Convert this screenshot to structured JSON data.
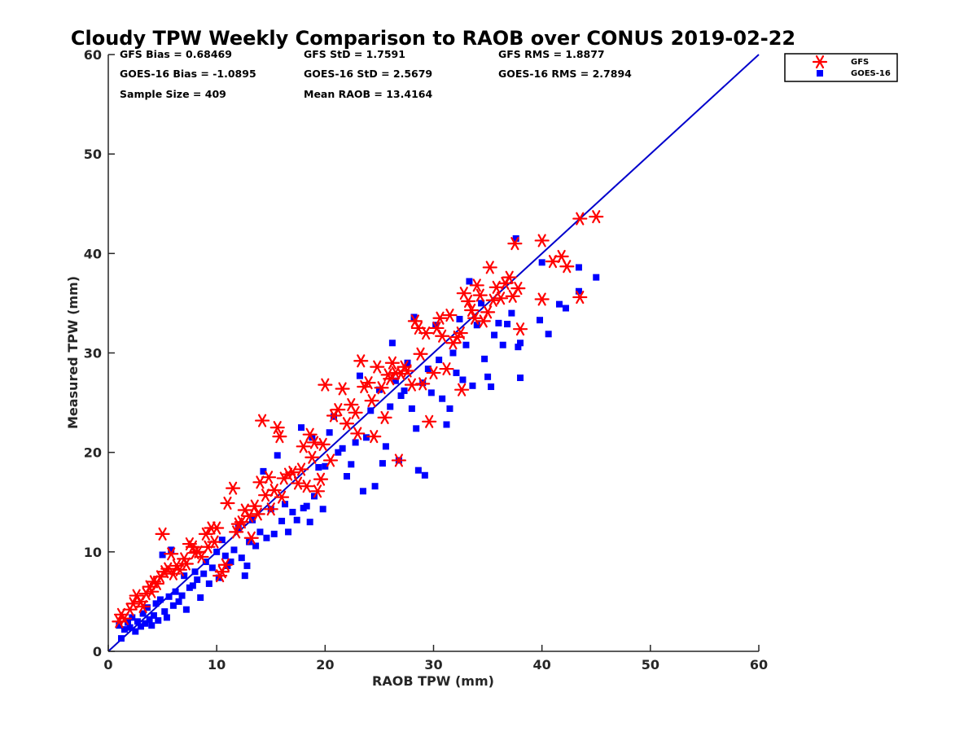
{
  "colors": {
    "gfs": "#ff0000",
    "goes": "#0000ff",
    "one_to_one_line": "#0000cc",
    "axis": "#262626"
  },
  "chart_data": {
    "type": "scatter",
    "title": "Cloudy TPW Weekly Comparison to RAOB over CONUS 2019-02-22",
    "xlabel": "RAOB TPW (mm)",
    "ylabel": "Measured TPW (mm)",
    "xlim": [
      0,
      60
    ],
    "ylim": [
      0,
      60
    ],
    "xticks": [
      "0",
      "10",
      "20",
      "30",
      "40",
      "50",
      "60"
    ],
    "yticks": [
      "0",
      "10",
      "20",
      "30",
      "40",
      "50",
      "60"
    ],
    "grid": false,
    "legend_position": "top-right, outside plot",
    "reference_line": {
      "type": "1:1",
      "from": [
        0,
        0
      ],
      "to": [
        60,
        60
      ]
    },
    "stats": {
      "gfs_bias": "GFS Bias = 0.68469",
      "goes_bias": "GOES-16 Bias = -1.0895",
      "sample_size": "Sample Size = 409",
      "gfs_std": "GFS StD = 1.7591",
      "goes_std": "GOES-16 StD = 2.5679",
      "mean_raob": "Mean RAOB = 13.4164",
      "gfs_rms": "GFS RMS = 1.8877",
      "goes_rms": "GOES-16 RMS = 2.7894"
    },
    "series": [
      {
        "name": "GFS",
        "marker": "asterisk",
        "points": [
          [
            1.0,
            3.0
          ],
          [
            1.2,
            3.7
          ],
          [
            1.5,
            3.3
          ],
          [
            2.0,
            4.2
          ],
          [
            2.3,
            4.8
          ],
          [
            2.6,
            5.6
          ],
          [
            3.0,
            5.0
          ],
          [
            3.2,
            4.5
          ],
          [
            3.5,
            5.8
          ],
          [
            3.8,
            6.5
          ],
          [
            4.0,
            6.0
          ],
          [
            4.2,
            7.0
          ],
          [
            4.5,
            6.8
          ],
          [
            4.8,
            7.5
          ],
          [
            5.0,
            11.8
          ],
          [
            5.2,
            8.0
          ],
          [
            5.5,
            8.3
          ],
          [
            5.8,
            9.8
          ],
          [
            6.0,
            7.8
          ],
          [
            6.3,
            8.6
          ],
          [
            6.6,
            8.2
          ],
          [
            7.0,
            9.3
          ],
          [
            7.2,
            8.8
          ],
          [
            7.5,
            10.8
          ],
          [
            7.8,
            10.5
          ],
          [
            8.0,
            9.9
          ],
          [
            8.3,
            10.0
          ],
          [
            8.6,
            9.5
          ],
          [
            9.0,
            11.8
          ],
          [
            9.2,
            10.5
          ],
          [
            9.5,
            12.4
          ],
          [
            9.8,
            11.0
          ],
          [
            10.0,
            12.4
          ],
          [
            10.3,
            7.6
          ],
          [
            10.5,
            8.0
          ],
          [
            10.8,
            8.7
          ],
          [
            11.0,
            14.9
          ],
          [
            11.5,
            16.4
          ],
          [
            11.8,
            12.0
          ],
          [
            12.0,
            12.8
          ],
          [
            12.3,
            13.0
          ],
          [
            12.6,
            14.2
          ],
          [
            13.0,
            13.6
          ],
          [
            13.2,
            11.4
          ],
          [
            13.5,
            14.6
          ],
          [
            13.8,
            13.8
          ],
          [
            14.0,
            17.0
          ],
          [
            14.2,
            23.2
          ],
          [
            14.5,
            15.7
          ],
          [
            14.8,
            17.5
          ],
          [
            15.0,
            14.3
          ],
          [
            15.3,
            16.2
          ],
          [
            15.6,
            22.5
          ],
          [
            15.8,
            21.6
          ],
          [
            16.0,
            15.5
          ],
          [
            16.2,
            17.4
          ],
          [
            16.6,
            17.8
          ],
          [
            17.0,
            18.0
          ],
          [
            17.5,
            16.9
          ],
          [
            17.8,
            18.3
          ],
          [
            18.0,
            20.6
          ],
          [
            18.3,
            16.6
          ],
          [
            18.6,
            21.8
          ],
          [
            18.8,
            19.5
          ],
          [
            19.0,
            21.0
          ],
          [
            19.3,
            16.1
          ],
          [
            19.6,
            17.3
          ],
          [
            19.8,
            20.8
          ],
          [
            20.0,
            26.8
          ],
          [
            20.5,
            19.2
          ],
          [
            20.8,
            23.7
          ],
          [
            21.2,
            24.3
          ],
          [
            21.6,
            26.4
          ],
          [
            22.0,
            22.9
          ],
          [
            22.4,
            24.8
          ],
          [
            22.8,
            24.0
          ],
          [
            23.0,
            21.9
          ],
          [
            23.3,
            29.2
          ],
          [
            23.6,
            26.6
          ],
          [
            24.0,
            27.0
          ],
          [
            24.3,
            25.2
          ],
          [
            24.5,
            21.6
          ],
          [
            24.8,
            28.6
          ],
          [
            25.2,
            26.5
          ],
          [
            25.5,
            23.5
          ],
          [
            25.8,
            27.8
          ],
          [
            26.0,
            27.4
          ],
          [
            26.2,
            29.0
          ],
          [
            26.5,
            28.0
          ],
          [
            26.8,
            19.2
          ],
          [
            27.0,
            27.9
          ],
          [
            27.3,
            28.6
          ],
          [
            27.6,
            28.2
          ],
          [
            28.0,
            26.8
          ],
          [
            28.3,
            33.2
          ],
          [
            28.6,
            32.5
          ],
          [
            28.8,
            29.9
          ],
          [
            29.0,
            26.9
          ],
          [
            29.3,
            32.0
          ],
          [
            29.6,
            23.1
          ],
          [
            30.0,
            28.0
          ],
          [
            30.3,
            32.5
          ],
          [
            30.6,
            33.5
          ],
          [
            30.8,
            31.7
          ],
          [
            31.2,
            28.4
          ],
          [
            31.5,
            33.8
          ],
          [
            31.8,
            31.0
          ],
          [
            32.2,
            31.6
          ],
          [
            32.5,
            32.0
          ],
          [
            32.6,
            26.3
          ],
          [
            32.8,
            36.0
          ],
          [
            33.2,
            35.2
          ],
          [
            33.5,
            34.3
          ],
          [
            33.8,
            33.5
          ],
          [
            34.0,
            36.8
          ],
          [
            34.3,
            35.8
          ],
          [
            34.6,
            33.2
          ],
          [
            35.0,
            34.1
          ],
          [
            35.2,
            38.6
          ],
          [
            35.5,
            35.3
          ],
          [
            35.8,
            36.6
          ],
          [
            36.2,
            35.5
          ],
          [
            36.6,
            37.0
          ],
          [
            37.0,
            37.6
          ],
          [
            37.3,
            35.7
          ],
          [
            37.5,
            41.0
          ],
          [
            37.8,
            36.5
          ],
          [
            38.0,
            32.4
          ],
          [
            40.0,
            35.4
          ],
          [
            40.0,
            41.3
          ],
          [
            41.0,
            39.2
          ],
          [
            41.8,
            39.7
          ],
          [
            42.3,
            38.7
          ],
          [
            43.5,
            35.6
          ],
          [
            43.5,
            43.5
          ],
          [
            45.0,
            43.7
          ]
        ]
      },
      {
        "name": "GOES-16",
        "marker": "square",
        "points": [
          [
            1.0,
            2.6
          ],
          [
            1.2,
            1.3
          ],
          [
            1.5,
            2.2
          ],
          [
            1.8,
            2.9
          ],
          [
            2.0,
            2.4
          ],
          [
            2.2,
            3.4
          ],
          [
            2.5,
            2.0
          ],
          [
            2.7,
            3.0
          ],
          [
            3.0,
            2.5
          ],
          [
            3.2,
            3.8
          ],
          [
            3.4,
            2.8
          ],
          [
            3.6,
            4.4
          ],
          [
            3.8,
            3.2
          ],
          [
            4.0,
            2.6
          ],
          [
            4.2,
            3.6
          ],
          [
            4.4,
            4.8
          ],
          [
            4.6,
            3.1
          ],
          [
            4.8,
            5.2
          ],
          [
            5.0,
            9.7
          ],
          [
            5.2,
            4.0
          ],
          [
            5.4,
            3.4
          ],
          [
            5.6,
            5.5
          ],
          [
            5.8,
            10.2
          ],
          [
            6.0,
            4.6
          ],
          [
            6.2,
            6.0
          ],
          [
            6.5,
            5.0
          ],
          [
            6.8,
            5.6
          ],
          [
            7.0,
            7.6
          ],
          [
            7.2,
            4.2
          ],
          [
            7.5,
            6.4
          ],
          [
            7.8,
            6.6
          ],
          [
            8.0,
            8.0
          ],
          [
            8.2,
            7.2
          ],
          [
            8.5,
            5.4
          ],
          [
            8.8,
            7.8
          ],
          [
            9.0,
            9.0
          ],
          [
            9.3,
            6.8
          ],
          [
            9.6,
            8.4
          ],
          [
            10.0,
            10.0
          ],
          [
            10.2,
            7.4
          ],
          [
            10.5,
            11.2
          ],
          [
            10.8,
            9.6
          ],
          [
            11.0,
            8.6
          ],
          [
            11.3,
            9.0
          ],
          [
            11.6,
            10.2
          ],
          [
            12.0,
            12.4
          ],
          [
            12.3,
            9.4
          ],
          [
            12.6,
            7.6
          ],
          [
            12.8,
            8.6
          ],
          [
            13.0,
            11.0
          ],
          [
            13.3,
            13.2
          ],
          [
            13.6,
            10.6
          ],
          [
            14.0,
            12.0
          ],
          [
            14.3,
            18.1
          ],
          [
            14.6,
            11.4
          ],
          [
            15.0,
            14.3
          ],
          [
            15.3,
            11.8
          ],
          [
            15.6,
            19.7
          ],
          [
            16.0,
            13.1
          ],
          [
            16.3,
            14.8
          ],
          [
            16.6,
            12.0
          ],
          [
            17.0,
            14.0
          ],
          [
            17.4,
            13.2
          ],
          [
            17.8,
            22.5
          ],
          [
            18.0,
            14.4
          ],
          [
            18.3,
            14.6
          ],
          [
            18.6,
            13.0
          ],
          [
            18.8,
            21.5
          ],
          [
            19.0,
            15.6
          ],
          [
            19.4,
            18.5
          ],
          [
            19.8,
            14.3
          ],
          [
            20.0,
            18.6
          ],
          [
            20.4,
            22.0
          ],
          [
            20.8,
            23.6
          ],
          [
            21.2,
            20.0
          ],
          [
            21.6,
            20.4
          ],
          [
            22.0,
            17.6
          ],
          [
            22.4,
            18.8
          ],
          [
            22.8,
            21.0
          ],
          [
            23.2,
            27.7
          ],
          [
            23.5,
            16.1
          ],
          [
            23.8,
            21.5
          ],
          [
            24.2,
            24.2
          ],
          [
            24.6,
            16.6
          ],
          [
            25.0,
            26.3
          ],
          [
            25.3,
            18.9
          ],
          [
            25.6,
            20.6
          ],
          [
            26.0,
            24.6
          ],
          [
            26.2,
            31.0
          ],
          [
            26.5,
            27.2
          ],
          [
            26.8,
            19.2
          ],
          [
            27.0,
            25.7
          ],
          [
            27.3,
            26.2
          ],
          [
            27.6,
            29.0
          ],
          [
            28.0,
            24.4
          ],
          [
            28.2,
            33.6
          ],
          [
            28.4,
            22.4
          ],
          [
            28.6,
            18.2
          ],
          [
            29.0,
            27.0
          ],
          [
            29.2,
            17.7
          ],
          [
            29.5,
            28.4
          ],
          [
            29.8,
            26.0
          ],
          [
            30.2,
            32.8
          ],
          [
            30.5,
            29.3
          ],
          [
            30.8,
            25.4
          ],
          [
            31.2,
            22.8
          ],
          [
            31.5,
            24.4
          ],
          [
            31.8,
            30.0
          ],
          [
            32.1,
            28.0
          ],
          [
            32.4,
            33.4
          ],
          [
            32.7,
            27.3
          ],
          [
            33.0,
            30.8
          ],
          [
            33.3,
            37.2
          ],
          [
            33.6,
            26.7
          ],
          [
            34.0,
            32.8
          ],
          [
            34.4,
            35.0
          ],
          [
            34.7,
            29.4
          ],
          [
            35.0,
            27.6
          ],
          [
            35.3,
            26.6
          ],
          [
            35.6,
            31.8
          ],
          [
            36.0,
            33.0
          ],
          [
            36.4,
            30.8
          ],
          [
            36.8,
            32.9
          ],
          [
            37.2,
            34.0
          ],
          [
            37.6,
            41.5
          ],
          [
            37.8,
            30.6
          ],
          [
            38.0,
            27.5
          ],
          [
            38.0,
            31.0
          ],
          [
            39.8,
            33.3
          ],
          [
            40.0,
            39.1
          ],
          [
            40.6,
            31.9
          ],
          [
            41.6,
            34.9
          ],
          [
            42.2,
            34.5
          ],
          [
            43.4,
            36.2
          ],
          [
            43.4,
            38.6
          ],
          [
            45.0,
            37.6
          ]
        ]
      }
    ]
  }
}
